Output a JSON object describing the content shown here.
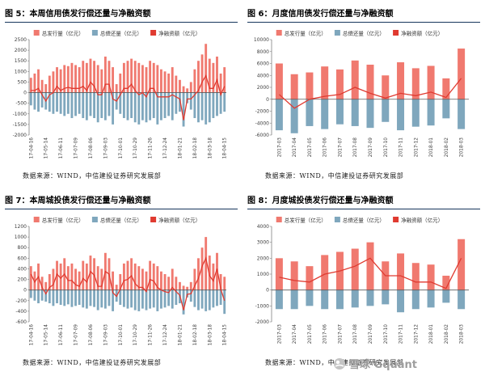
{
  "page": {
    "background": "#ffffff",
    "watermark": {
      "icon": "snowball-icon",
      "text": "雪球 Gquant",
      "color": "#9e9e9e"
    }
  },
  "colors": {
    "issuance_bar": "#f0796f",
    "repayment_bar": "#7fa7bd",
    "net_line": "#e03a30",
    "title_rule": "#16365c",
    "axis": "#808080",
    "tick_text": "#404040"
  },
  "chart_data": [
    {
      "id": "fig5",
      "type": "bar+line",
      "title": "图 5：本周信用债发行偿还量与净融资额",
      "source": "数据来源：WIND，中信建投证券研究发展部",
      "legend_position": "top",
      "grid": false,
      "ylim": [
        -2000,
        2500
      ],
      "y_step": 500,
      "n_points": 53,
      "label_every": 4,
      "x_tick_labels": [
        "17-04-16",
        "17-05-14",
        "17-06-11",
        "17-07-09",
        "17-08-06",
        "17-09-03",
        "17-10-01",
        "17-10-29",
        "17-11-26",
        "17-12-24",
        "18-01-21",
        "18-02-18",
        "18-03-18",
        "18-04-15"
      ],
      "series": [
        {
          "name": "总发行量（亿元）",
          "type": "bar",
          "values": [
            700,
            900,
            1100,
            600,
            400,
            800,
            1000,
            1200,
            1100,
            1300,
            1250,
            1400,
            1300,
            1200,
            1500,
            1400,
            1600,
            1500,
            1300,
            1100,
            1700,
            1500,
            1200,
            400,
            900,
            1400,
            1500,
            1600,
            1500,
            1400,
            1300,
            1200,
            1500,
            1400,
            1300,
            1100,
            1000,
            900,
            1200,
            800,
            600,
            300,
            200,
            500,
            1100,
            1500,
            1800,
            2300,
            1600,
            1400,
            1700,
            900,
            1200
          ]
        },
        {
          "name": "总偿还量（亿元）",
          "type": "bar",
          "values": [
            -600,
            -800,
            -900,
            -700,
            -800,
            -900,
            -1000,
            -900,
            -1000,
            -1100,
            -1000,
            -1200,
            -1100,
            -1000,
            -1200,
            -1300,
            -1100,
            -1200,
            -1400,
            -1200,
            -1300,
            -1100,
            -1500,
            -800,
            -1000,
            -1200,
            -1300,
            -1200,
            -1400,
            -1500,
            -1300,
            -1400,
            -1300,
            -1200,
            -1500,
            -1300,
            -1200,
            -1100,
            -1300,
            -1000,
            -900,
            -1600,
            -500,
            -800,
            -1200,
            -1400,
            -1300,
            -1500,
            -1400,
            -1200,
            -1100,
            -1000,
            -900
          ]
        },
        {
          "name": "净融资额（亿元）",
          "type": "line",
          "values": [
            100,
            100,
            200,
            -100,
            -400,
            -100,
            0,
            300,
            100,
            200,
            250,
            200,
            200,
            200,
            300,
            100,
            500,
            300,
            -100,
            -100,
            400,
            400,
            -300,
            -400,
            -100,
            200,
            200,
            400,
            100,
            -100,
            0,
            -200,
            200,
            200,
            -200,
            -200,
            -200,
            -200,
            -100,
            -200,
            -300,
            -1300,
            -300,
            -300,
            -100,
            100,
            500,
            800,
            200,
            200,
            600,
            -100,
            300
          ]
        }
      ]
    },
    {
      "id": "fig6",
      "type": "bar+line",
      "title": "图 6：月度信用债发行偿还量与净融资额",
      "source": "数据来源：WIND，中信建投证券研究发展部",
      "legend_position": "top",
      "grid": false,
      "ylim": [
        -6000,
        10000
      ],
      "y_step": 2000,
      "n_points": 13,
      "label_every": 1,
      "x_tick_labels": [
        "2017-03",
        "2017-04",
        "2017-05",
        "2017-06",
        "2017-07",
        "2017-08",
        "2017-09",
        "2017-10",
        "2017-11",
        "2017-12",
        "2018-01",
        "2018-02",
        "2018-03"
      ],
      "series": [
        {
          "name": "总发行量（亿元）",
          "type": "bar",
          "values": [
            6000,
            4200,
            4500,
            5500,
            5000,
            6500,
            5800,
            4000,
            6200,
            5200,
            5600,
            3500,
            8500
          ]
        },
        {
          "name": "总偿还量（亿元）",
          "type": "bar",
          "values": [
            -5200,
            -5700,
            -4500,
            -5000,
            -4200,
            -4500,
            -4800,
            -3800,
            -5200,
            -4600,
            -4400,
            -3200,
            -5000
          ]
        },
        {
          "name": "净融资额（亿元）",
          "type": "line",
          "values": [
            800,
            -1500,
            0,
            500,
            800,
            2000,
            1000,
            200,
            1000,
            600,
            1200,
            300,
            3500
          ]
        }
      ]
    },
    {
      "id": "fig7",
      "type": "bar+line",
      "title": "图 7：本周城投债发行偿还量与净融资额",
      "source": "数据来源：WIND，中信建投证券研究发展部",
      "legend_position": "top",
      "grid": false,
      "ylim": [
        -600,
        1200
      ],
      "y_step": 200,
      "n_points": 53,
      "label_every": 4,
      "x_tick_labels": [
        "17-04-16",
        "17-05-14",
        "17-06-11",
        "17-07-09",
        "17-08-06",
        "17-09-03",
        "17-10-01",
        "17-10-29",
        "17-11-26",
        "17-12-24",
        "18-01-21",
        "18-02-18",
        "18-03-18",
        "18-04-15"
      ],
      "series": [
        {
          "name": "总发行量（亿元）",
          "type": "bar",
          "values": [
            450,
            350,
            500,
            250,
            150,
            300,
            400,
            550,
            500,
            600,
            450,
            500,
            400,
            350,
            550,
            500,
            650,
            600,
            450,
            400,
            700,
            600,
            350,
            100,
            300,
            500,
            550,
            600,
            500,
            450,
            400,
            350,
            550,
            500,
            450,
            350,
            300,
            250,
            400,
            250,
            150,
            80,
            60,
            150,
            400,
            600,
            800,
            1000,
            650,
            500,
            700,
            300,
            250
          ]
        },
        {
          "name": "总偿还量（亿元）",
          "type": "bar",
          "values": [
            -150,
            -200,
            -250,
            -200,
            -220,
            -250,
            -300,
            -250,
            -280,
            -300,
            -270,
            -320,
            -300,
            -280,
            -330,
            -350,
            -300,
            -320,
            -380,
            -330,
            -350,
            -300,
            -400,
            -220,
            -280,
            -320,
            -350,
            -330,
            -380,
            -400,
            -350,
            -380,
            -350,
            -330,
            -400,
            -350,
            -330,
            -300,
            -350,
            -280,
            -250,
            -460,
            -140,
            -220,
            -320,
            -380,
            -350,
            -400,
            -380,
            -330,
            -300,
            -280,
            -450
          ]
        },
        {
          "name": "净融资额（亿元）",
          "type": "line",
          "values": [
            300,
            150,
            250,
            50,
            -70,
            50,
            100,
            300,
            220,
            300,
            180,
            180,
            100,
            70,
            220,
            150,
            350,
            280,
            70,
            70,
            350,
            300,
            -50,
            -120,
            20,
            180,
            200,
            270,
            120,
            50,
            50,
            -30,
            200,
            170,
            50,
            0,
            -30,
            -50,
            50,
            -30,
            -100,
            -380,
            -80,
            -70,
            80,
            220,
            450,
            600,
            270,
            170,
            400,
            20,
            -200
          ]
        }
      ]
    },
    {
      "id": "fig8",
      "type": "bar+line",
      "title": "图 8：月度城投债发行偿还量与净融资额",
      "source": "数据来源：WIND，中信建投证券研究发展部",
      "legend_position": "top",
      "grid": false,
      "ylim": [
        -2000,
        4000
      ],
      "y_step": 1000,
      "n_points": 13,
      "label_every": 1,
      "x_tick_labels": [
        "2017-03",
        "2017-04",
        "2017-05",
        "2017-06",
        "2017-07",
        "2017-08",
        "2017-09",
        "2017-10",
        "2017-11",
        "2017-12",
        "2018-01",
        "2018-02",
        "2018-03"
      ],
      "series": [
        {
          "name": "总发行量（亿元）",
          "type": "bar",
          "values": [
            2000,
            1800,
            1500,
            2200,
            2400,
            2600,
            3000,
            1800,
            2300,
            1700,
            1600,
            900,
            3200
          ]
        },
        {
          "name": "总偿还量（亿元）",
          "type": "bar",
          "values": [
            -1200,
            -1200,
            -1000,
            -1200,
            -1200,
            -1100,
            -1000,
            -900,
            -1400,
            -1200,
            -1100,
            -800,
            -1200
          ]
        },
        {
          "name": "净融资额（亿元）",
          "type": "line",
          "values": [
            800,
            600,
            500,
            1000,
            1200,
            1500,
            2000,
            900,
            900,
            500,
            500,
            100,
            2000
          ]
        }
      ]
    }
  ]
}
